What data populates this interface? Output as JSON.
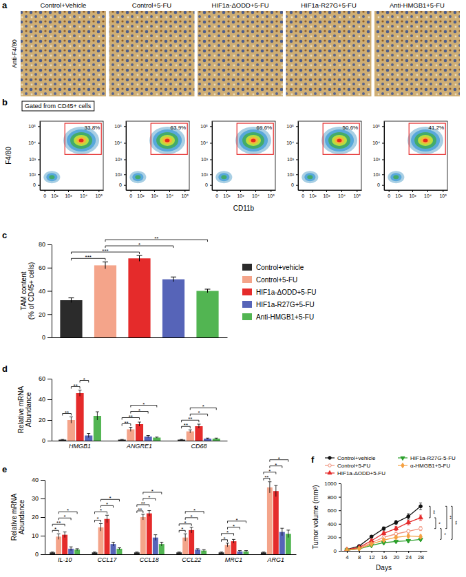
{
  "panel_labels": [
    "a",
    "b",
    "c",
    "d",
    "e",
    "f"
  ],
  "panel_a": {
    "row_label": "Anti-F4/80",
    "titles": [
      "Control+Vehicle",
      "Control+5-FU",
      "HIF1a-ΔODD+5-FU",
      "HIF1a-R27G+5-FU",
      "Anti-HMGB1+5-FU"
    ]
  },
  "panel_b": {
    "header": "Gated from CD45+ cells",
    "x_label": "CD11b",
    "y_label": "F4/80",
    "xlim": [
      -30,
      200000
    ],
    "ylim": [
      -30,
      200000
    ],
    "xticks": [
      0,
      {
        "value": 100,
        "label": "10²"
      },
      {
        "value": 1000,
        "label": "10³"
      },
      {
        "value": 10000,
        "label": "10⁴"
      },
      {
        "value": 100000,
        "label": "10⁵"
      }
    ],
    "yticks": [
      0,
      {
        "value": 100,
        "label": "10²"
      },
      {
        "value": 1000,
        "label": "10³"
      },
      {
        "value": 10000,
        "label": "10⁴"
      },
      {
        "value": 100000,
        "label": "10⁵"
      }
    ],
    "gate": {
      "x": [
        600,
        150000
      ],
      "y": [
        2000,
        150000
      ]
    },
    "gate_percent": [
      {
        "value": 33.8,
        "label": "33.8%"
      },
      {
        "value": 63.9,
        "label": "63.9%"
      },
      {
        "value": 69.6,
        "label": "69.6%"
      },
      {
        "value": 50.6,
        "label": "50.6%"
      },
      {
        "value": 41.2,
        "label": "41.2%"
      }
    ]
  },
  "chart_data": [
    {
      "type": "bar",
      "y_label": [
        "TAM content",
        "(% of CD45+ cells)"
      ],
      "categories": [
        "Control+vehicle",
        "Control+5-FU",
        "HIF1a-ΔODD+5-FU",
        "HIF1a-R27G+5-FU",
        "Anti-HMGB1+5-FU"
      ],
      "values": [
        32,
        62,
        68,
        50,
        40
      ],
      "errors": [
        2,
        3,
        2.5,
        2,
        1.5
      ],
      "colors": [
        "#2b2b2b",
        "#f4a48a",
        "#e52b2b",
        "#5664b8",
        "#52b552"
      ],
      "ylim": [
        0,
        80
      ],
      "yticks": [
        0,
        20,
        40,
        60,
        80
      ],
      "tick_labels": "y",
      "legend": "right",
      "comparisons": [
        {
          "pair": [
            0,
            1
          ],
          "label": "***"
        },
        {
          "pair": [
            0,
            2
          ],
          "label": "***"
        },
        {
          "pair": [
            1,
            3
          ],
          "label": "*"
        },
        {
          "pair": [
            1,
            4
          ],
          "label": "**"
        }
      ]
    },
    {
      "type": "bar",
      "y_label": [
        "Relative mRNA",
        "Abundance"
      ],
      "categories": [
        "HMGB1",
        "ANGRE1",
        "CD68"
      ],
      "series": [
        {
          "color": "#2b2b2b",
          "values": [
            1,
            1,
            1
          ],
          "errors": [
            0.2,
            0.2,
            0.2
          ]
        },
        {
          "color": "#f4a48a",
          "values": [
            20,
            11,
            9
          ],
          "errors": [
            3,
            2,
            1.5
          ]
        },
        {
          "color": "#e52b2b",
          "values": [
            46,
            16,
            14
          ],
          "errors": [
            3,
            2,
            2
          ]
        },
        {
          "color": "#5664b8",
          "values": [
            5,
            4,
            2
          ],
          "errors": [
            2,
            1,
            0.5
          ]
        },
        {
          "color": "#52b552",
          "values": [
            24,
            3,
            2
          ],
          "errors": [
            4,
            0.5,
            0.5
          ]
        }
      ],
      "ylim": [
        0,
        60
      ],
      "yticks": [
        0,
        20,
        40,
        60
      ],
      "comparisons": [
        {
          "category": 0,
          "pair": [
            0,
            1
          ],
          "label": "**"
        },
        {
          "category": 0,
          "pair": [
            1,
            2
          ],
          "label": "**"
        },
        {
          "category": 0,
          "pair": [
            2,
            3
          ],
          "label": "*"
        },
        {
          "category": 1,
          "pair": [
            0,
            1
          ],
          "label": "**"
        },
        {
          "category": 1,
          "pair": [
            0,
            2
          ],
          "label": "**"
        },
        {
          "category": 1,
          "pair": [
            1,
            3
          ],
          "label": "*"
        },
        {
          "category": 1,
          "pair": [
            1,
            4
          ],
          "label": "*"
        },
        {
          "category": 2,
          "pair": [
            0,
            1
          ],
          "label": "**"
        },
        {
          "category": 2,
          "pair": [
            0,
            2
          ],
          "label": "**"
        },
        {
          "category": 2,
          "pair": [
            1,
            3
          ],
          "label": "*"
        },
        {
          "category": 2,
          "pair": [
            1,
            4
          ],
          "label": "*"
        }
      ]
    },
    {
      "type": "bar",
      "y_label": [
        "Relative mRNA",
        "Abundance"
      ],
      "categories": [
        "IL-10",
        "CCL17",
        "CCL18",
        "CCL22",
        "MRC1",
        "ARG1"
      ],
      "series": [
        {
          "color": "#2b2b2b",
          "values": [
            1,
            1,
            1,
            1,
            1,
            1
          ],
          "errors": [
            0.2,
            0.2,
            0.2,
            0.2,
            0.2,
            0.2
          ]
        },
        {
          "color": "#f4a48a",
          "values": [
            9.5,
            14.5,
            20,
            9,
            5,
            36
          ],
          "errors": [
            1.5,
            2,
            1.5,
            2,
            1,
            3
          ]
        },
        {
          "color": "#e52b2b",
          "values": [
            10.5,
            19,
            22,
            13,
            7,
            34
          ],
          "errors": [
            1.5,
            2,
            1.5,
            1.5,
            1,
            3
          ]
        },
        {
          "color": "#5664b8",
          "values": [
            3,
            5.5,
            9,
            2.5,
            1.5,
            12
          ],
          "errors": [
            1,
            1,
            1.5,
            0.5,
            0.5,
            2
          ]
        },
        {
          "color": "#52b552",
          "values": [
            2.5,
            3,
            5.5,
            2,
            1.5,
            11
          ],
          "errors": [
            0.5,
            0.5,
            1,
            0.5,
            0.5,
            2
          ]
        }
      ],
      "ylim": [
        0,
        40
      ],
      "yticks": [
        0,
        10,
        20,
        30,
        40
      ],
      "comparisons": [
        {
          "category": 0,
          "pair": [
            0,
            1
          ],
          "label": "*"
        },
        {
          "category": 0,
          "pair": [
            0,
            2
          ],
          "label": "**"
        },
        {
          "category": 0,
          "pair": [
            1,
            3
          ],
          "label": "*"
        },
        {
          "category": 0,
          "pair": [
            1,
            4
          ],
          "label": "*"
        },
        {
          "category": 1,
          "pair": [
            0,
            1
          ],
          "label": "*"
        },
        {
          "category": 1,
          "pair": [
            0,
            2
          ],
          "label": "*"
        },
        {
          "category": 1,
          "pair": [
            1,
            3
          ],
          "label": "*"
        },
        {
          "category": 1,
          "pair": [
            1,
            4
          ],
          "label": "*"
        },
        {
          "category": 2,
          "pair": [
            0,
            1
          ],
          "label": "**"
        },
        {
          "category": 2,
          "pair": [
            0,
            2
          ],
          "label": "**"
        },
        {
          "category": 2,
          "pair": [
            1,
            3
          ],
          "label": "*"
        },
        {
          "category": 2,
          "pair": [
            1,
            4
          ],
          "label": "*"
        },
        {
          "category": 3,
          "pair": [
            0,
            1
          ],
          "label": "*"
        },
        {
          "category": 3,
          "pair": [
            0,
            2
          ],
          "label": "*"
        },
        {
          "category": 3,
          "pair": [
            1,
            3
          ],
          "label": "*"
        },
        {
          "category": 3,
          "pair": [
            1,
            4
          ],
          "label": "*"
        },
        {
          "category": 4,
          "pair": [
            0,
            1
          ],
          "label": "*"
        },
        {
          "category": 4,
          "pair": [
            0,
            2
          ],
          "label": "*"
        },
        {
          "category": 4,
          "pair": [
            1,
            3
          ],
          "label": "*"
        },
        {
          "category": 4,
          "pair": [
            1,
            4
          ],
          "label": "*"
        },
        {
          "category": 5,
          "pair": [
            0,
            1
          ],
          "label": "**"
        },
        {
          "category": 5,
          "pair": [
            0,
            2
          ],
          "label": "*"
        },
        {
          "category": 5,
          "pair": [
            1,
            3
          ],
          "label": "*"
        },
        {
          "category": 5,
          "pair": [
            1,
            4
          ],
          "label": "*"
        }
      ]
    },
    {
      "type": "line",
      "x_label": "Days",
      "y_label": "Tumor volume (mm³)",
      "x": [
        4,
        8,
        12,
        16,
        20,
        24,
        28
      ],
      "series": [
        {
          "name": "Control+vehicle",
          "color": "#111111",
          "marker": "circle",
          "values": [
            20,
            70,
            210,
            330,
            420,
            510,
            660
          ],
          "errors": [
            5,
            10,
            20,
            25,
            30,
            40,
            50
          ]
        },
        {
          "name": "Control+5-FU",
          "color": "#f0907a",
          "marker": "circle-open",
          "values": [
            15,
            40,
            120,
            200,
            250,
            290,
            330
          ],
          "errors": [
            3,
            8,
            15,
            20,
            25,
            25,
            30
          ]
        },
        {
          "name": "HIF1a-ΔODD+5-FU",
          "color": "#e52b2b",
          "marker": "triangle-up",
          "values": [
            20,
            50,
            150,
            260,
            330,
            420,
            490
          ],
          "errors": [
            4,
            8,
            15,
            25,
            30,
            35,
            40
          ]
        },
        {
          "name": "HIF1a-R27G-5-FU",
          "color": "#2ca02c",
          "marker": "triangle-down",
          "values": [
            10,
            30,
            80,
            120,
            140,
            150,
            170
          ],
          "errors": [
            3,
            5,
            10,
            15,
            15,
            20,
            20
          ]
        },
        {
          "name": "α-HMGB1+5-FU",
          "color": "#f5a142",
          "marker": "diamond",
          "values": [
            10,
            30,
            100,
            160,
            200,
            220,
            210
          ],
          "errors": [
            3,
            5,
            10,
            15,
            20,
            20,
            25
          ]
        }
      ],
      "xlim": [
        2,
        30
      ],
      "xticks": [
        4,
        8,
        12,
        16,
        20,
        24,
        28
      ],
      "ylim": [
        0,
        1000
      ],
      "yticks": [
        0,
        200,
        400,
        600,
        800,
        1000
      ],
      "legend": "top",
      "comparisons": [
        {
          "pair": [
            0,
            2
          ],
          "label": "**"
        },
        {
          "pair": [
            2,
            1
          ],
          "label": "*"
        },
        {
          "pair": [
            1,
            3
          ],
          "label": "*"
        },
        {
          "pair": [
            0,
            1
          ],
          "label": "**"
        },
        {
          "pair": [
            0,
            3
          ],
          "label": "**"
        }
      ]
    }
  ]
}
